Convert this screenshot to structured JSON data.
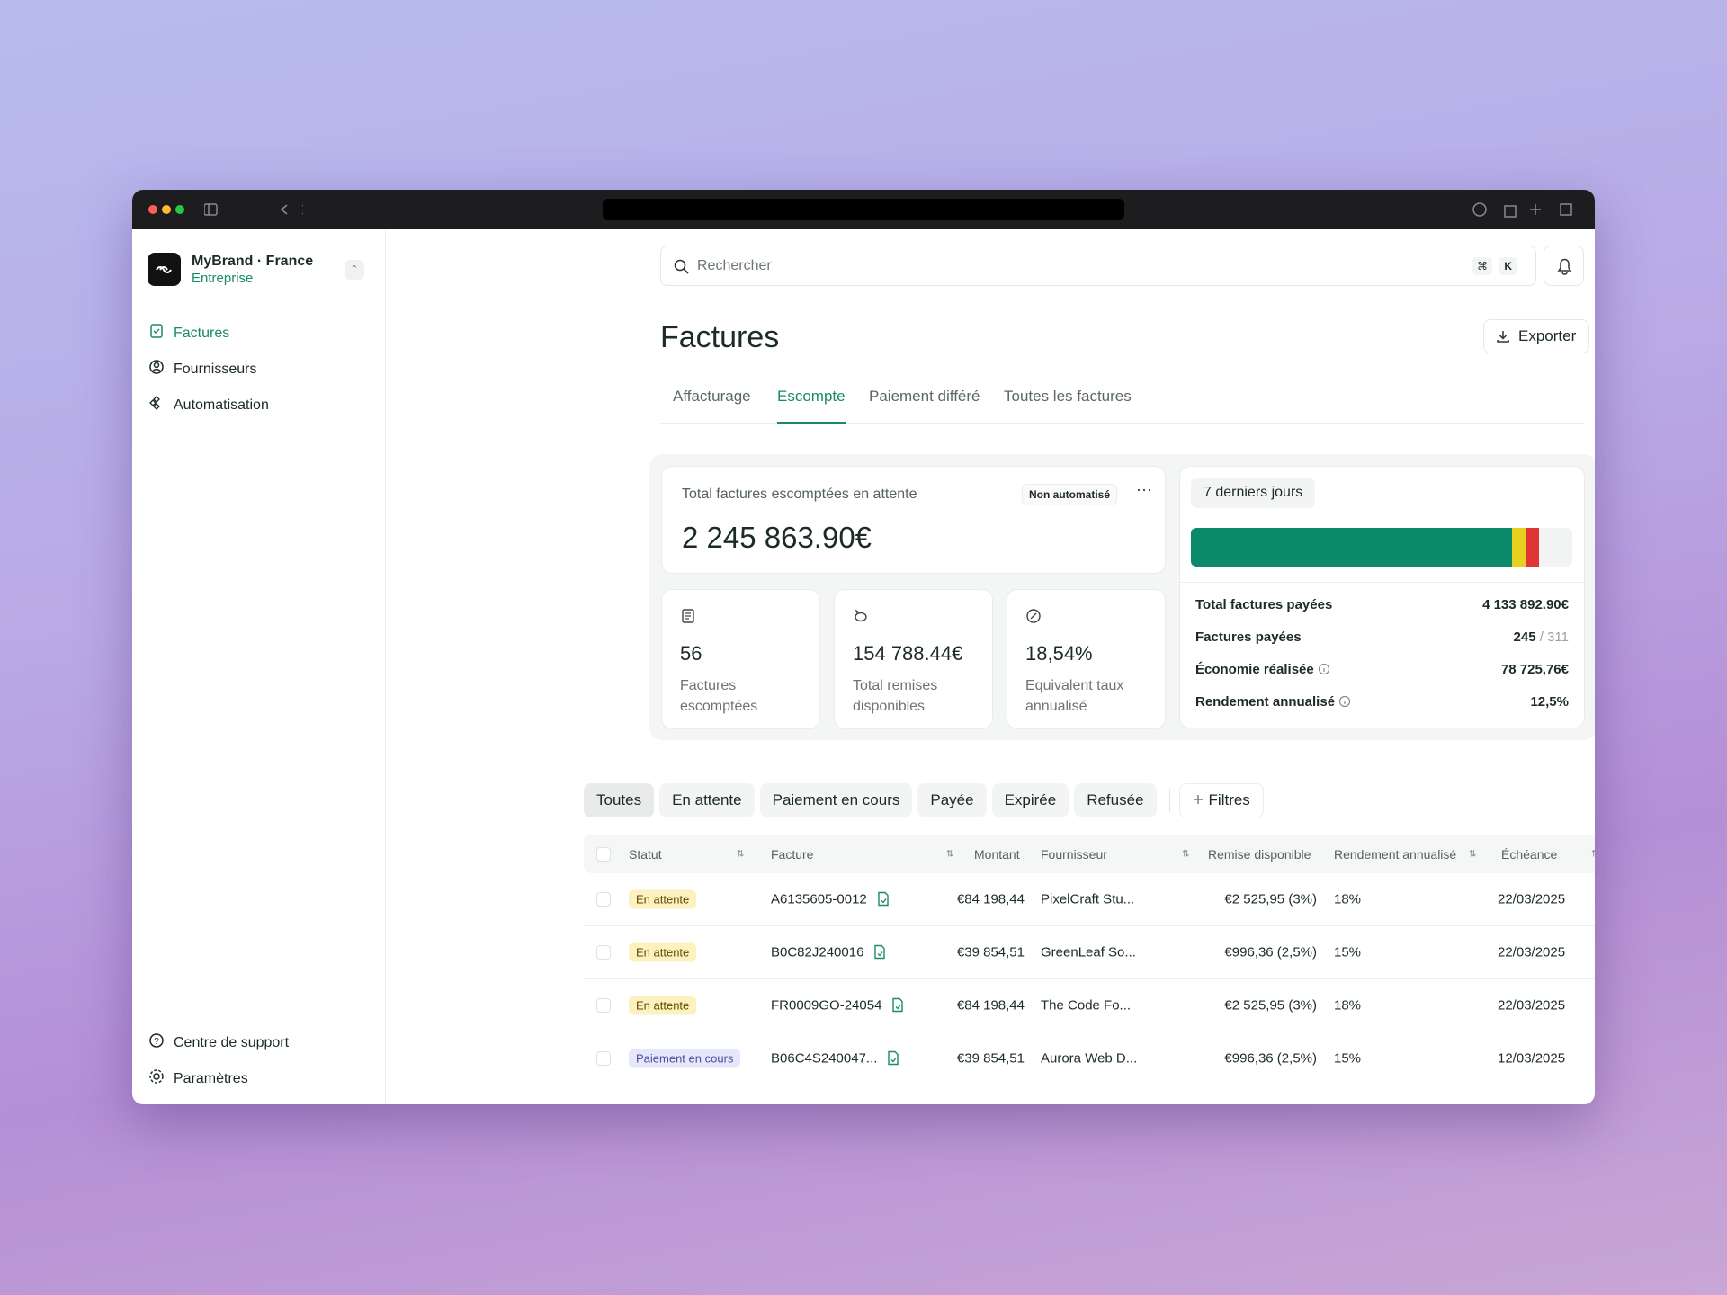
{
  "sidebar": {
    "brand": "MyBrand · France",
    "plan": "Entreprise",
    "nav": [
      "Factures",
      "Fournisseurs",
      "Automatisation"
    ],
    "footer": [
      "Centre de support",
      "Paramètres"
    ]
  },
  "header": {
    "search": "Rechercher",
    "shortcut": [
      "⌘",
      "K"
    ],
    "title": "Factures",
    "export": "Exporter"
  },
  "tabs": [
    "Affacturage",
    "Escompte",
    "Paiement différé",
    "Toutes les factures"
  ],
  "summary": {
    "label": "Total factures escomptées en attente",
    "badge": "Non automatisé",
    "total": "2 245 863.90€"
  },
  "stats": [
    {
      "value": "56",
      "label": "Factures escomptées"
    },
    {
      "value": "154 788.44€",
      "label": "Total remises disponibles"
    },
    {
      "value": "18,54%",
      "label": "Equivalent taux annualisé"
    }
  ],
  "period": {
    "label": "7 derniers jours",
    "rows": [
      {
        "label": "Total factures payées",
        "value": "4 133 892.90€"
      },
      {
        "label": "Factures payées",
        "value": "245",
        "total": "/ 311"
      },
      {
        "label": "Économie réalisée",
        "value": "78 725,76€"
      },
      {
        "label": "Rendement annualisé",
        "value": "12,5%"
      }
    ]
  },
  "filters": [
    "Toutes",
    "En attente",
    "Paiement en cours",
    "Payée",
    "Expirée",
    "Refusée"
  ],
  "filters_button": "Filtres",
  "table": {
    "columns": [
      "Statut",
      "Facture",
      "Montant",
      "Fournisseur",
      "Remise disponible",
      "Rendement annualisé",
      "Échéance"
    ],
    "rows": [
      [
        "En attente",
        "A6135605-0012",
        "€84 198,44",
        "PixelCraft Stu...",
        "€2 525,95 (3%)",
        "18%",
        "22/03/2025"
      ],
      [
        "En attente",
        "B0C82J240016",
        "€39 854,51",
        "GreenLeaf So...",
        "€996,36 (2,5%)",
        "15%",
        "22/03/2025"
      ],
      [
        "En attente",
        "FR0009GO-24054",
        "€84 198,44",
        "The Code Fo...",
        "€2 525,95 (3%)",
        "18%",
        "22/03/2025"
      ],
      [
        "Paiement en cours",
        "B06C4S240047...",
        "€39 854,51",
        "Aurora Web D...",
        "€996,36 (2,5%)",
        "15%",
        "12/03/2025"
      ]
    ]
  }
}
